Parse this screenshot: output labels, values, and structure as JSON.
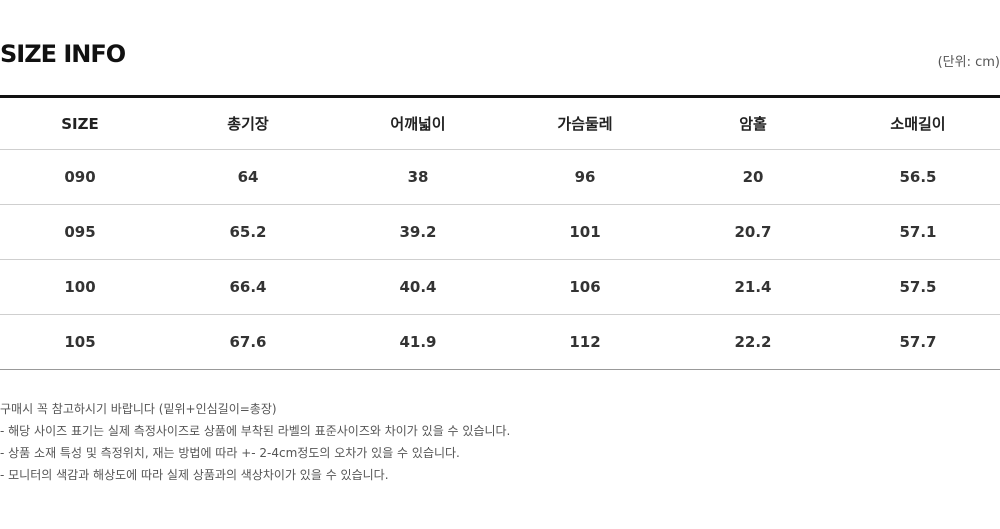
{
  "title": "SIZE INFO",
  "unit": "(단위: cm)",
  "columns": [
    "SIZE",
    "총기장",
    "어깨넓이",
    "가슴둘레",
    "암홀",
    "소매길이"
  ],
  "rows": [
    [
      "090",
      "64",
      "38",
      "96",
      "20",
      "56.5"
    ],
    [
      "095",
      "65.2",
      "39.2",
      "101",
      "20.7",
      "57.1"
    ],
    [
      "100",
      "66.4",
      "40.4",
      "106",
      "21.4",
      "57.5"
    ],
    [
      "105",
      "67.6",
      "41.9",
      "112",
      "22.2",
      "57.7"
    ]
  ],
  "notes": [
    "구매시 꼭 참고하시기 바랍니다 (밑위+인심길이=총장)",
    "- 해당 사이즈 표기는 실제 측정사이즈로 상품에 부착된 라벨의 표준사이즈와 차이가 있을 수 있습니다.",
    "- 상품 소재 특성 및 측정위치, 재는 방법에 따라 +- 2-4cm정도의 오차가 있을 수 있습니다.",
    "- 모니터의 색감과 해상도에 따라 실제 상품과의 색상차이가 있을 수 있습니다."
  ]
}
